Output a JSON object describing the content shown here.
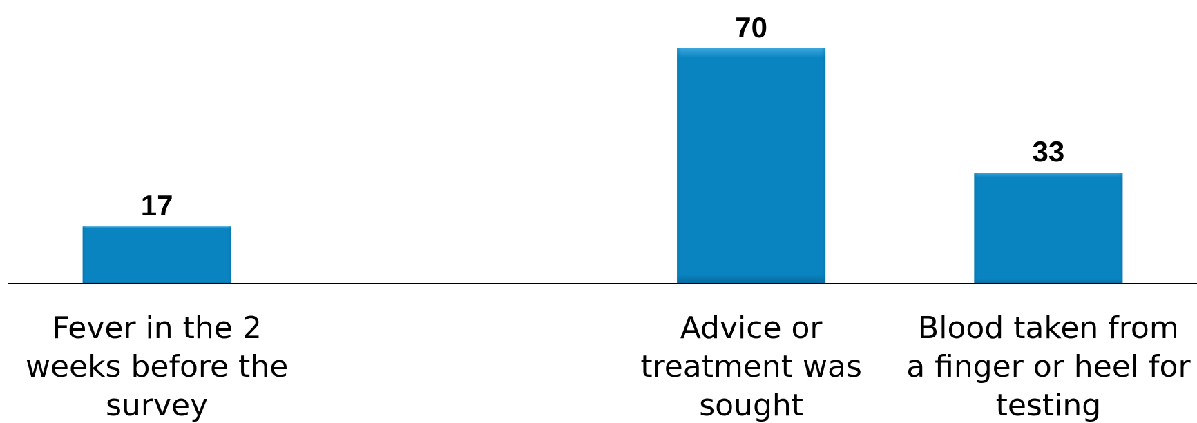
{
  "chart_data": {
    "type": "bar",
    "categories": [
      [
        "Fever in the 2",
        "weeks before the",
        "survey"
      ],
      [
        "",
        "",
        ""
      ],
      [
        "Advice or",
        "treatment was",
        "sought"
      ],
      [
        "Blood taken from",
        "a finger or heel for",
        "testing"
      ]
    ],
    "values": [
      17,
      null,
      70,
      33
    ],
    "data_labels": [
      "17",
      "",
      "70",
      "33"
    ],
    "title": "",
    "xlabel": "",
    "ylabel": "",
    "ylim": [
      0,
      70
    ],
    "grid": false,
    "legend": "none",
    "colors": {
      "bar": "#0a84c1",
      "bar_highlight": "#3aa6dc",
      "bar_shadow": "#076a9c",
      "axis": "#000000"
    }
  }
}
